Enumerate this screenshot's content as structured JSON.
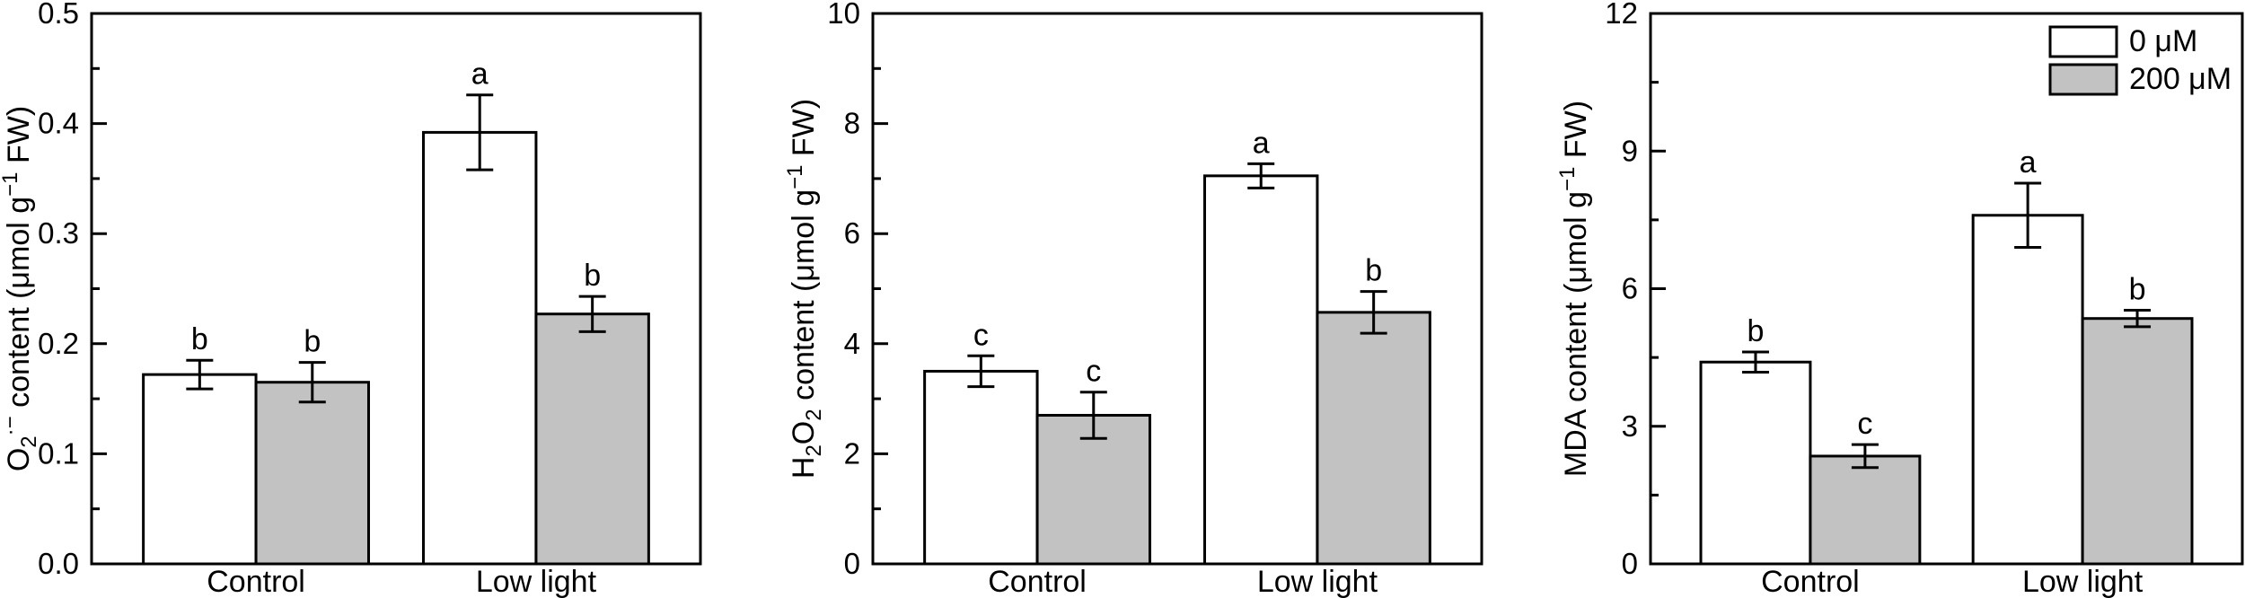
{
  "figure": {
    "background": "#FFFFFF",
    "text_color": "#000000",
    "line_color": "#000000",
    "categories": [
      "Control",
      "Low light"
    ],
    "legend": {
      "position": "top-right",
      "shown_on_chart": "mda-chart",
      "entries": [
        {
          "label": "0 μM",
          "fill": "#FFFFFF"
        },
        {
          "label": "200 μM",
          "fill": "#C2C2C2"
        }
      ]
    }
  },
  "chart_data": [
    {
      "id": "o2-chart",
      "type": "bar",
      "title": "",
      "xlabel": "",
      "ylabel": "O₂·⁻ content (μmol g⁻¹ FW)",
      "ylabel_rich": [
        {
          "t": "O"
        },
        {
          "t": "2",
          "s": "sub"
        },
        {
          "t": "·−",
          "s": "sup"
        },
        {
          "t": " content (μmol g"
        },
        {
          "t": "−1",
          "s": "sup"
        },
        {
          "t": " FW)"
        }
      ],
      "ylim": [
        0,
        0.5
      ],
      "ytick_step": 0.1,
      "yminor_step": 0.05,
      "ytick_decimals": 1,
      "grid": false,
      "legend": {
        "show": false
      },
      "categories": [
        "Control",
        "Low light"
      ],
      "series": [
        {
          "name": "0 μM",
          "fill": "#FFFFFF",
          "values": [
            0.172,
            0.392
          ],
          "errors": [
            0.013,
            0.034
          ],
          "letters": [
            "b",
            "a"
          ]
        },
        {
          "name": "200 μM",
          "fill": "#C2C2C2",
          "values": [
            0.165,
            0.227
          ],
          "errors": [
            0.018,
            0.016
          ],
          "letters": [
            "b",
            "b"
          ]
        }
      ]
    },
    {
      "id": "h2o2-chart",
      "type": "bar",
      "title": "",
      "xlabel": "",
      "ylabel": "H₂O₂ content (μmol g⁻¹ FW)",
      "ylabel_rich": [
        {
          "t": "H"
        },
        {
          "t": "2",
          "s": "sub"
        },
        {
          "t": "O"
        },
        {
          "t": "2",
          "s": "sub"
        },
        {
          "t": " content (μmol g"
        },
        {
          "t": "−1",
          "s": "sup"
        },
        {
          "t": " FW)"
        }
      ],
      "ylim": [
        0,
        10
      ],
      "ytick_step": 2,
      "yminor_step": 1,
      "ytick_decimals": 0,
      "grid": false,
      "legend": {
        "show": false
      },
      "categories": [
        "Control",
        "Low light"
      ],
      "series": [
        {
          "name": "0 μM",
          "fill": "#FFFFFF",
          "values": [
            3.5,
            7.05
          ],
          "errors": [
            0.28,
            0.22
          ],
          "letters": [
            "c",
            "a"
          ]
        },
        {
          "name": "200 μM",
          "fill": "#C2C2C2",
          "values": [
            2.7,
            4.57
          ],
          "errors": [
            0.42,
            0.38
          ],
          "letters": [
            "c",
            "b"
          ]
        }
      ]
    },
    {
      "id": "mda-chart",
      "type": "bar",
      "title": "",
      "xlabel": "",
      "ylabel": "MDA content (μmol g⁻¹ FW)",
      "ylabel_rich": [
        {
          "t": "MDA content (μmol g"
        },
        {
          "t": "−1",
          "s": "sup"
        },
        {
          "t": " FW)"
        }
      ],
      "ylim": [
        0,
        12
      ],
      "ytick_step": 3,
      "yminor_step": 1.5,
      "ytick_decimals": 0,
      "grid": false,
      "legend": {
        "show": true,
        "position": "top-right"
      },
      "categories": [
        "Control",
        "Low light"
      ],
      "series": [
        {
          "name": "0 μM",
          "fill": "#FFFFFF",
          "values": [
            4.4,
            7.6
          ],
          "errors": [
            0.22,
            0.7
          ],
          "letters": [
            "b",
            "a"
          ]
        },
        {
          "name": "200 μM",
          "fill": "#C2C2C2",
          "values": [
            2.35,
            5.35
          ],
          "errors": [
            0.25,
            0.18
          ],
          "letters": [
            "c",
            "b"
          ]
        }
      ]
    }
  ]
}
